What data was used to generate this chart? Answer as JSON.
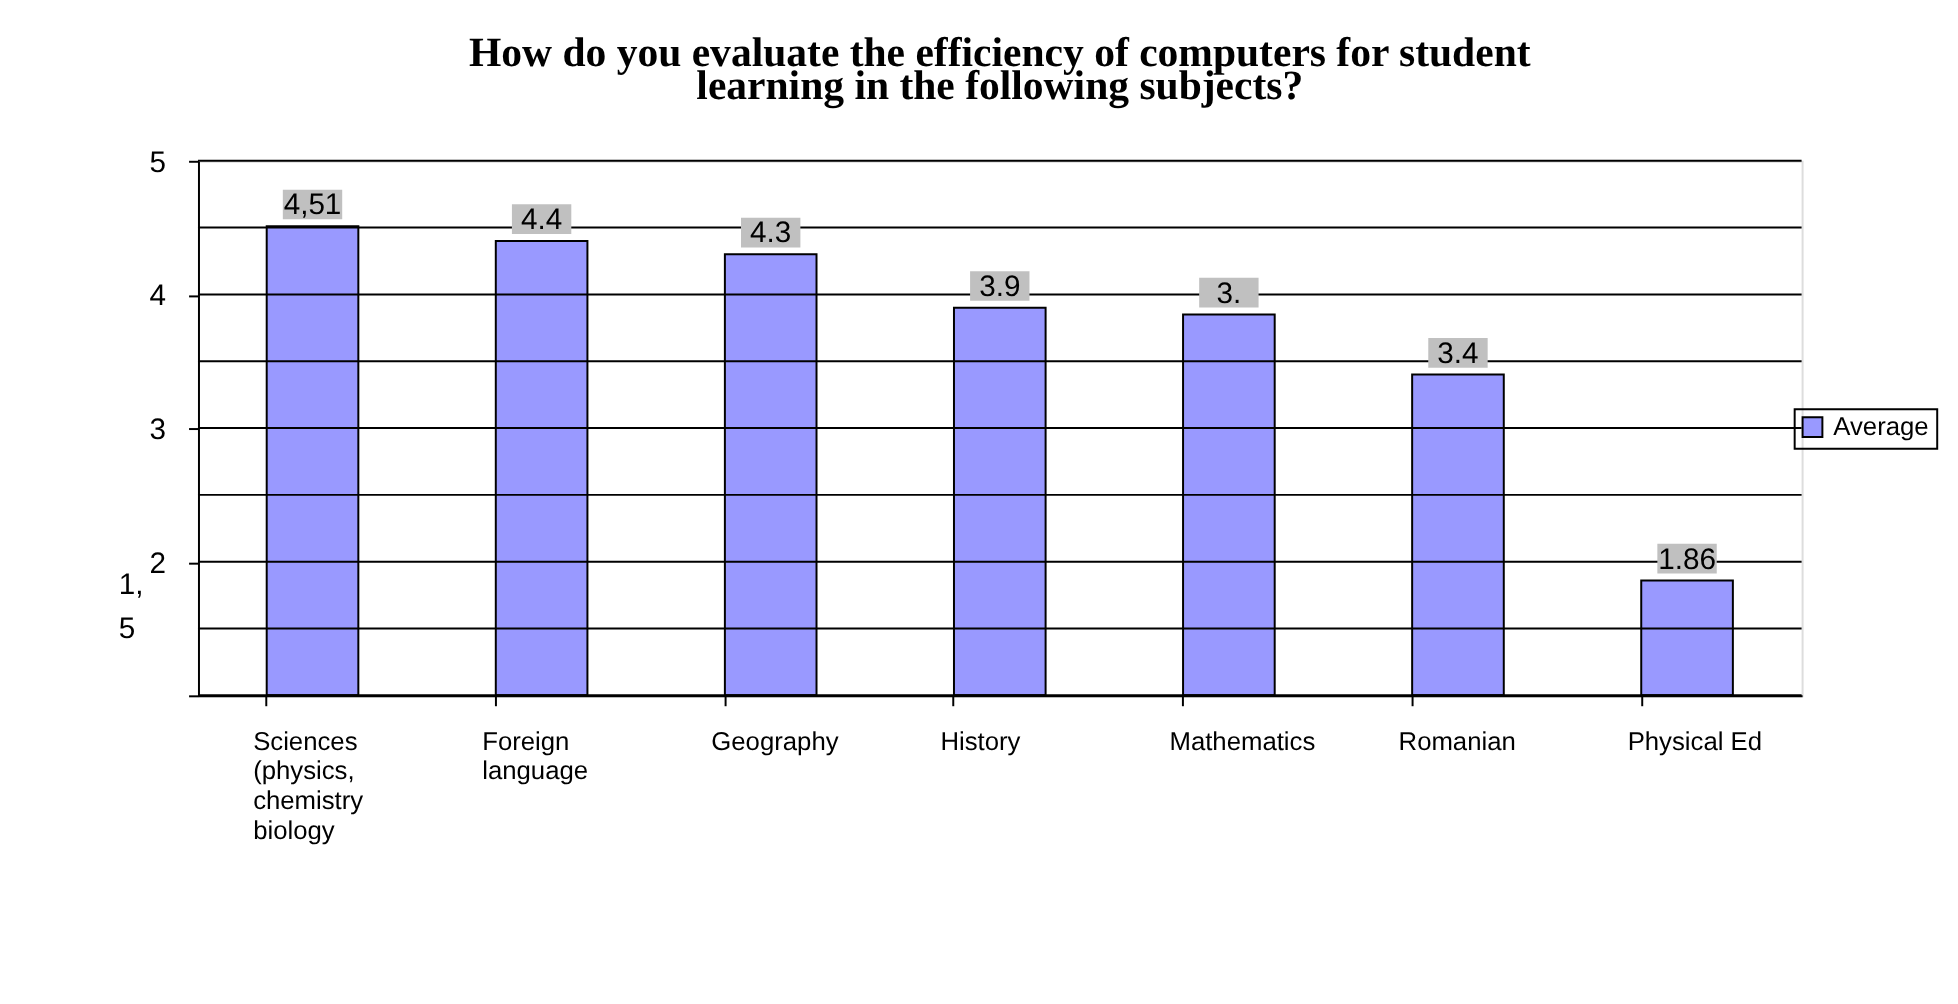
{
  "chart_data": {
    "type": "bar",
    "title": [
      "How do you evaluate the efficiency of computers for student",
      "learning in the following subjects?"
    ],
    "categories": [
      "Sciences\n(physics,\nchemistry\nbiology",
      "Foreign\nlanguage",
      "Geography",
      "History",
      "Mathematics",
      "Romanian",
      "Physical Ed"
    ],
    "series": [
      {
        "name": "Average",
        "color": "#9999ff",
        "values": [
          4.51,
          4.4,
          4.3,
          3.9,
          3.85,
          3.4,
          1.86
        ]
      }
    ],
    "value_labels": [
      "4,51",
      "4.4",
      "4.3",
      "3.9",
      "3.",
      "3.4",
      "1.86"
    ],
    "ylim": [
      1,
      5
    ],
    "yticks": [
      {
        "value": 1,
        "label": null
      },
      {
        "value": 1.5,
        "label": null
      },
      2,
      {
        "value": 2.5,
        "label": null
      },
      3,
      {
        "value": 3.5,
        "label": null
      },
      4,
      {
        "value": 4.5,
        "label": null
      },
      5
    ],
    "annotations": [
      "1,",
      "5"
    ],
    "grid": "y",
    "legend": "right"
  }
}
